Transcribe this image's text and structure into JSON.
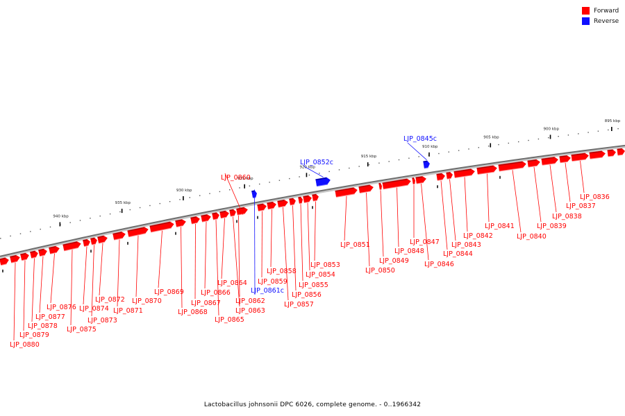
{
  "legend": {
    "forward_label": "Forward",
    "reverse_label": "Reverse",
    "forward_color": "#ff0000",
    "reverse_color": "#1010ff"
  },
  "caption": "Lactobacillus johnsonii DPC 6026, complete genome. - 0..1966342",
  "ticks": [
    {
      "label": "895 kbp"
    },
    {
      "label": "900 kbp"
    },
    {
      "label": "905 kbp"
    },
    {
      "label": "910 kbp"
    },
    {
      "label": "915 kbp"
    },
    {
      "label": "920 kbp"
    },
    {
      "label": "925 kbp"
    },
    {
      "label": "930 kbp"
    },
    {
      "label": "935 kbp"
    },
    {
      "label": "940 kbp"
    }
  ],
  "genes": [
    {
      "label": "LJP_0836",
      "strand": "forward"
    },
    {
      "label": "LJP_0837",
      "strand": "forward"
    },
    {
      "label": "LJP_0838",
      "strand": "forward"
    },
    {
      "label": "LJP_0839",
      "strand": "forward"
    },
    {
      "label": "LJP_0840",
      "strand": "forward"
    },
    {
      "label": "LJP_0841",
      "strand": "forward"
    },
    {
      "label": "LJP_0842",
      "strand": "forward"
    },
    {
      "label": "LJP_0843",
      "strand": "forward"
    },
    {
      "label": "LJP_0844",
      "strand": "forward"
    },
    {
      "label": "LJP_0845c",
      "strand": "reverse"
    },
    {
      "label": "LJP_0846",
      "strand": "forward"
    },
    {
      "label": "LJP_0847",
      "strand": "forward"
    },
    {
      "label": "LJP_0848",
      "strand": "forward"
    },
    {
      "label": "LJP_0849",
      "strand": "forward"
    },
    {
      "label": "LJP_0850",
      "strand": "forward"
    },
    {
      "label": "LJP_0851",
      "strand": "forward"
    },
    {
      "label": "LJP_0852c",
      "strand": "reverse"
    },
    {
      "label": "LJP_0853",
      "strand": "forward"
    },
    {
      "label": "LJP_0854",
      "strand": "forward"
    },
    {
      "label": "LJP_0855",
      "strand": "forward"
    },
    {
      "label": "LJP_0856",
      "strand": "forward"
    },
    {
      "label": "LJP_0857",
      "strand": "forward"
    },
    {
      "label": "LJP_0858",
      "strand": "forward"
    },
    {
      "label": "LJP_0859",
      "strand": "forward"
    },
    {
      "label": "LJP_0860",
      "strand": "forward"
    },
    {
      "label": "LJP_0861c",
      "strand": "reverse"
    },
    {
      "label": "LJP_0862",
      "strand": "forward"
    },
    {
      "label": "LJP_0863",
      "strand": "forward"
    },
    {
      "label": "LJP_0864",
      "strand": "forward"
    },
    {
      "label": "LJP_0865",
      "strand": "forward"
    },
    {
      "label": "LJP_0866",
      "strand": "forward"
    },
    {
      "label": "LJP_0867",
      "strand": "forward"
    },
    {
      "label": "LJP_0868",
      "strand": "forward"
    },
    {
      "label": "LJP_0869",
      "strand": "forward"
    },
    {
      "label": "LJP_0870",
      "strand": "forward"
    },
    {
      "label": "LJP_0871",
      "strand": "forward"
    },
    {
      "label": "LJP_0872",
      "strand": "forward"
    },
    {
      "label": "LJP_0873",
      "strand": "forward"
    },
    {
      "label": "LJP_0874",
      "strand": "forward"
    },
    {
      "label": "LJP_0875",
      "strand": "forward"
    },
    {
      "label": "LJP_0876",
      "strand": "forward"
    },
    {
      "label": "LJP_0877",
      "strand": "forward"
    },
    {
      "label": "LJP_0878",
      "strand": "forward"
    },
    {
      "label": "LJP_0879",
      "strand": "forward"
    },
    {
      "label": "LJP_0880",
      "strand": "forward"
    }
  ]
}
